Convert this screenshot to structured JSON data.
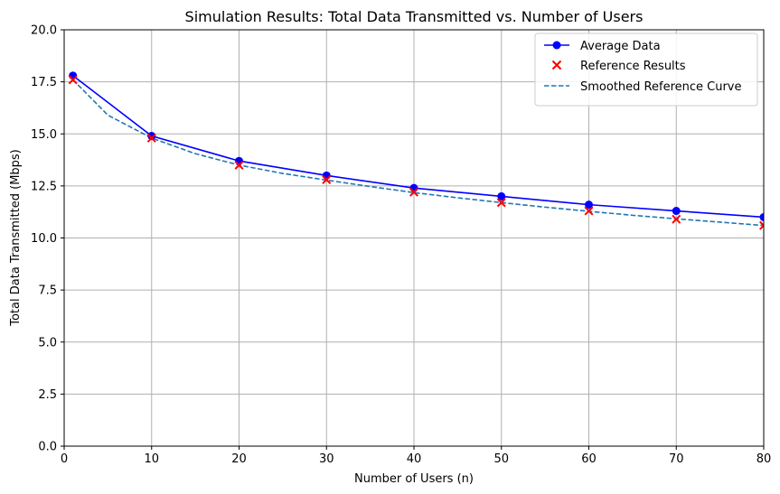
{
  "chart_data": {
    "type": "line",
    "title": "Simulation Results: Total Data Transmitted vs. Number of Users",
    "xlabel": "Number of Users (n)",
    "ylabel": "Total Data Transmitted (Mbps)",
    "xlim": [
      0,
      80
    ],
    "ylim": [
      0,
      20
    ],
    "xticks": [
      0,
      10,
      20,
      30,
      40,
      50,
      60,
      70,
      80
    ],
    "yticks": [
      0.0,
      2.5,
      5.0,
      7.5,
      10.0,
      12.5,
      15.0,
      17.5,
      20.0
    ],
    "ytick_labels": [
      "0.0",
      "2.5",
      "5.0",
      "7.5",
      "10.0",
      "12.5",
      "15.0",
      "17.5",
      "20.0"
    ],
    "grid": true,
    "legend_position": "top-right",
    "series": [
      {
        "name": "Average Data",
        "style": "line-with-circle-markers",
        "color": "#0000ff",
        "x": [
          1,
          10,
          20,
          30,
          40,
          50,
          60,
          70,
          80
        ],
        "y": [
          17.8,
          14.9,
          13.7,
          13.0,
          12.4,
          12.0,
          11.6,
          11.3,
          11.0
        ]
      },
      {
        "name": "Reference Results",
        "style": "x-markers",
        "color": "#ff0000",
        "x": [
          1,
          10,
          20,
          30,
          40,
          50,
          60,
          70,
          80
        ],
        "y": [
          17.6,
          14.8,
          13.5,
          12.8,
          12.2,
          11.7,
          11.3,
          10.9,
          10.6
        ]
      },
      {
        "name": "Smoothed Reference Curve",
        "style": "dashed-line",
        "color": "#1f77b4",
        "x": [
          1,
          5,
          10,
          15,
          20,
          25,
          30,
          35,
          40,
          45,
          50,
          55,
          60,
          65,
          70,
          75,
          80
        ],
        "y": [
          17.6,
          15.9,
          14.8,
          14.05,
          13.5,
          13.1,
          12.78,
          12.47,
          12.18,
          11.93,
          11.7,
          11.48,
          11.28,
          11.09,
          10.92,
          10.76,
          10.6
        ]
      }
    ]
  }
}
